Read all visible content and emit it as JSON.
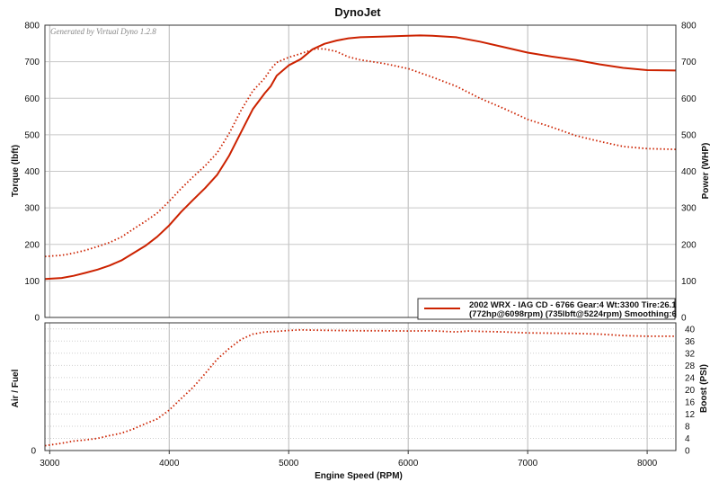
{
  "chart_data": {
    "type": "line",
    "title": "DynoJet",
    "watermark": "Generated by Virtual Dyno 1.2.8",
    "xlabel": "Engine Speed (RPM)",
    "xlim": [
      2960,
      8240
    ],
    "x_ticks": [
      "3000",
      "4000",
      "5000",
      "6000",
      "7000",
      "8000"
    ],
    "grid": true,
    "legend": {
      "line1": "2002 WRX - IAG CD - 6766  Gear:4 Wt:3300 Tire:26.1",
      "line2": "(772hp@6098rpm) (735lbft@5224rpm) Smoothing:6",
      "placement": "bottom-right"
    },
    "line_color": "#cc2200",
    "top_panel": {
      "ylabel_left": "Torque (lbft)",
      "ylabel_right": "Power (WHP)",
      "ylim": [
        0,
        800
      ],
      "y_ticks": [
        "0",
        "100",
        "200",
        "300",
        "400",
        "500",
        "600",
        "700",
        "800"
      ],
      "series": [
        {
          "style": "solid",
          "x": [
            2960,
            3100,
            3200,
            3300,
            3400,
            3500,
            3600,
            3700,
            3800,
            3900,
            4000,
            4100,
            4200,
            4300,
            4400,
            4500,
            4600,
            4700,
            4800,
            4850,
            4900,
            5000,
            5100,
            5200,
            5300,
            5400,
            5500,
            5600,
            5800,
            6000,
            6100,
            6200,
            6400,
            6600,
            6800,
            7000,
            7200,
            7400,
            7600,
            7800,
            8000,
            8240
          ],
          "values": [
            105,
            108,
            114,
            122,
            131,
            142,
            156,
            176,
            196,
            221,
            252,
            289,
            322,
            354,
            390,
            442,
            506,
            570,
            614,
            633,
            662,
            690,
            707,
            734,
            749,
            758,
            764,
            767,
            769,
            771,
            772,
            771,
            767,
            755,
            740,
            725,
            714,
            705,
            693,
            683,
            677,
            676
          ]
        },
        {
          "style": "dotted",
          "x": [
            2960,
            3100,
            3200,
            3300,
            3400,
            3500,
            3600,
            3700,
            3800,
            3900,
            4000,
            4100,
            4200,
            4300,
            4400,
            4500,
            4600,
            4700,
            4800,
            4850,
            4900,
            5000,
            5100,
            5200,
            5224,
            5300,
            5400,
            5500,
            5600,
            5800,
            6000,
            6200,
            6400,
            6600,
            6800,
            7000,
            7200,
            7400,
            7600,
            7800,
            8000,
            8240
          ],
          "values": [
            167,
            170,
            176,
            184,
            194,
            205,
            220,
            242,
            263,
            286,
            318,
            353,
            385,
            415,
            450,
            503,
            566,
            620,
            655,
            680,
            698,
            712,
            722,
            733,
            735,
            735,
            728,
            713,
            705,
            695,
            681,
            658,
            633,
            600,
            572,
            542,
            521,
            498,
            482,
            468,
            462,
            460
          ]
        }
      ]
    },
    "bottom_panel": {
      "ylabel_left": "Air / Fuel",
      "ylabel_right": "Boost (PSI)",
      "ylim": [
        0,
        42
      ],
      "left_ticks": [
        "0"
      ],
      "y_ticks": [
        "0",
        "4",
        "8",
        "12",
        "16",
        "20",
        "24",
        "28",
        "32",
        "36",
        "40"
      ],
      "series": [
        {
          "name": "Boost",
          "style": "dotted",
          "x": [
            2960,
            3100,
            3200,
            3300,
            3400,
            3500,
            3600,
            3700,
            3800,
            3900,
            4000,
            4100,
            4200,
            4300,
            4400,
            4500,
            4600,
            4700,
            4750,
            4800,
            4900,
            5000,
            5100,
            5200,
            5400,
            5600,
            5800,
            6000,
            6200,
            6300,
            6400,
            6500,
            6600,
            6800,
            7000,
            7200,
            7400,
            7600,
            7800,
            8000,
            8240
          ],
          "values": [
            1.6,
            2.4,
            3.1,
            3.5,
            4.0,
            4.9,
            5.7,
            7.1,
            8.8,
            10.4,
            13.3,
            17.1,
            20.8,
            25.3,
            30.0,
            33.5,
            36.5,
            38.3,
            38.6,
            39.0,
            39.2,
            39.5,
            39.7,
            39.6,
            39.5,
            39.4,
            39.4,
            39.3,
            39.4,
            39.2,
            39.0,
            39.3,
            39.2,
            39.0,
            38.7,
            38.6,
            38.5,
            38.3,
            37.8,
            37.6,
            37.6
          ]
        }
      ]
    }
  }
}
